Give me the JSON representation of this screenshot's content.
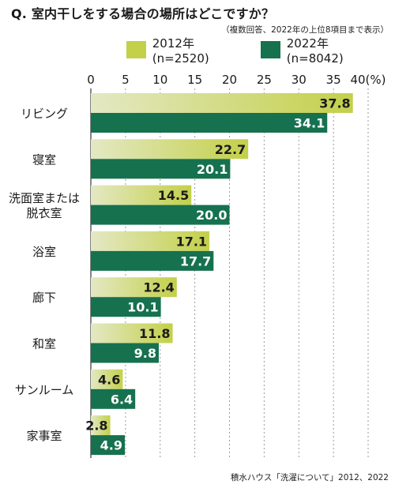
{
  "title": "Q. 室内干しをする場合の場所はどこですか？",
  "subtitle": "（複数回答、2022年の上位8項目まで表示）",
  "source": "積水ハウス「洗濯について」2012、2022",
  "colors": {
    "series_2012": "#c3d04a",
    "series_2022": "#16714f",
    "axis": "#333333",
    "grid": "#9a9a9a"
  },
  "chart_data": {
    "type": "bar",
    "orientation": "horizontal",
    "xlim": [
      0,
      40
    ],
    "ticks": [
      "0",
      "5",
      "10",
      "15",
      "20",
      "25",
      "30",
      "35",
      "40(%)"
    ],
    "tick_values": [
      0,
      5,
      10,
      15,
      20,
      25,
      30,
      35,
      40
    ],
    "grid": true,
    "legend": "top",
    "categories": [
      [
        "リビング"
      ],
      [
        "寝室"
      ],
      [
        "洗面室または",
        "脱衣室"
      ],
      [
        "浴室"
      ],
      [
        "廊下"
      ],
      [
        "和室"
      ],
      [
        "サンルーム"
      ],
      [
        "家事室"
      ]
    ],
    "series": [
      {
        "name": "2012年(n=2520)",
        "values": [
          37.8,
          22.7,
          14.5,
          17.1,
          12.4,
          11.8,
          4.6,
          2.8
        ]
      },
      {
        "name": "2022年(n=8042)",
        "values": [
          34.1,
          20.1,
          20.0,
          17.7,
          10.1,
          9.8,
          6.4,
          4.9
        ]
      }
    ]
  }
}
